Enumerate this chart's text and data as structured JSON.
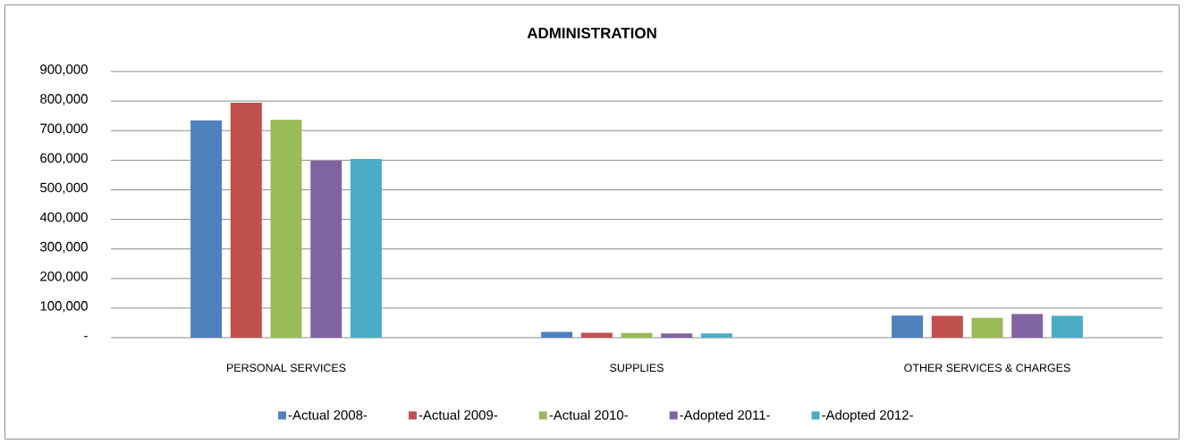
{
  "chart_data": {
    "type": "bar",
    "title": "ADMINISTRATION",
    "categories": [
      "PERSONAL SERVICES",
      "SUPPLIES",
      "OTHER SERVICES & CHARGES"
    ],
    "series": [
      {
        "name": "-Actual 2008-",
        "color": "#4f81bd",
        "values": [
          735000,
          20000,
          75000
        ]
      },
      {
        "name": "-Actual 2009-",
        "color": "#c0504d",
        "values": [
          794000,
          17000,
          74000
        ]
      },
      {
        "name": "-Actual 2010-",
        "color": "#9bbb59",
        "values": [
          737000,
          16000,
          67000
        ]
      },
      {
        "name": "-Adopted 2011-",
        "color": "#8064a2",
        "values": [
          598000,
          14000,
          80000
        ]
      },
      {
        "name": "-Adopted  2012-",
        "color": "#4bacc6",
        "values": [
          604000,
          14000,
          74000
        ]
      }
    ],
    "ylim": [
      0,
      900000
    ],
    "yticks": [
      {
        "value": 0,
        "label": "-"
      },
      {
        "value": 100000,
        "label": "100,000"
      },
      {
        "value": 200000,
        "label": "200,000"
      },
      {
        "value": 300000,
        "label": "300,000"
      },
      {
        "value": 400000,
        "label": "400,000"
      },
      {
        "value": 500000,
        "label": "500,000"
      },
      {
        "value": 600000,
        "label": "600,000"
      },
      {
        "value": 700000,
        "label": "700,000"
      },
      {
        "value": 800000,
        "label": "800,000"
      },
      {
        "value": 900000,
        "label": "900,000"
      }
    ],
    "grid": "y",
    "legend": "bottom"
  }
}
